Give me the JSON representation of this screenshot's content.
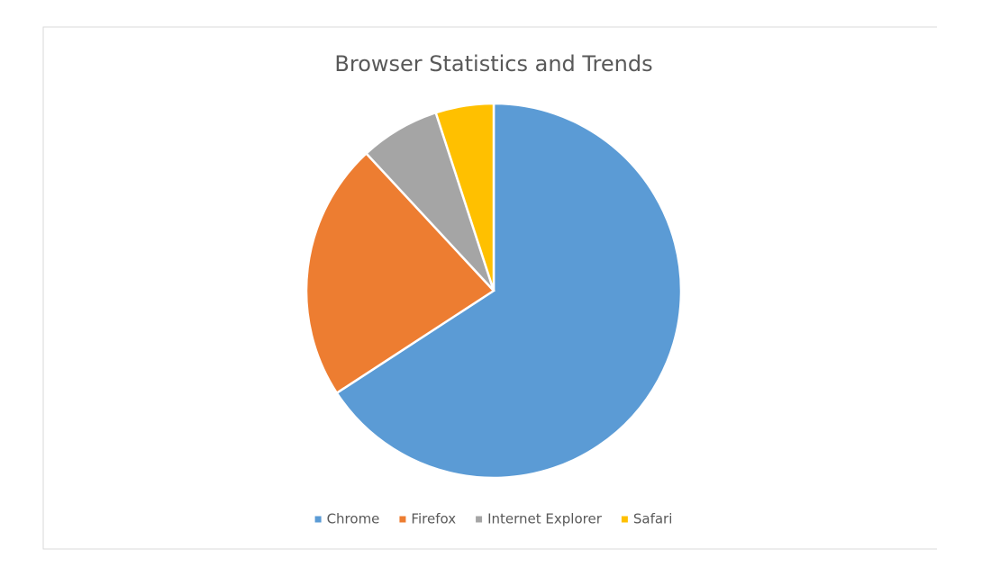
{
  "chart_data": {
    "type": "pie",
    "title": "Browser Statistics and Trends",
    "categories": [
      "Chrome",
      "Firefox",
      "Internet Explorer",
      "Safari"
    ],
    "values": [
      65.8,
      22.3,
      6.9,
      5.0
    ],
    "colors": [
      "#5b9bd5",
      "#ed7d31",
      "#a5a5a5",
      "#ffc000"
    ],
    "legend": "bottom"
  }
}
